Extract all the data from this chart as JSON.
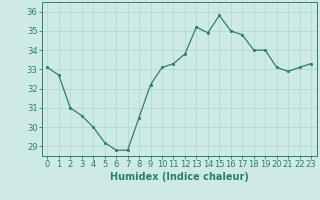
{
  "x": [
    0,
    1,
    2,
    3,
    4,
    5,
    6,
    7,
    8,
    9,
    10,
    11,
    12,
    13,
    14,
    15,
    16,
    17,
    18,
    19,
    20,
    21,
    22,
    23
  ],
  "y": [
    33.1,
    32.7,
    31.0,
    30.6,
    30.0,
    29.2,
    28.8,
    28.8,
    30.5,
    32.2,
    33.1,
    33.3,
    33.8,
    35.2,
    34.9,
    35.8,
    35.0,
    34.8,
    34.0,
    34.0,
    33.1,
    32.9,
    33.1,
    33.3
  ],
  "xlabel": "Humidex (Indice chaleur)",
  "xlim": [
    -0.5,
    23.5
  ],
  "ylim": [
    28.5,
    36.5
  ],
  "yticks": [
    29,
    30,
    31,
    32,
    33,
    34,
    35,
    36
  ],
  "xticks": [
    0,
    1,
    2,
    3,
    4,
    5,
    6,
    7,
    8,
    9,
    10,
    11,
    12,
    13,
    14,
    15,
    16,
    17,
    18,
    19,
    20,
    21,
    22,
    23
  ],
  "line_color": "#2e7d6e",
  "bg_color": "#ceeae6",
  "grid_color": "#b8d8d4",
  "xlabel_fontsize": 7,
  "tick_fontsize": 6
}
